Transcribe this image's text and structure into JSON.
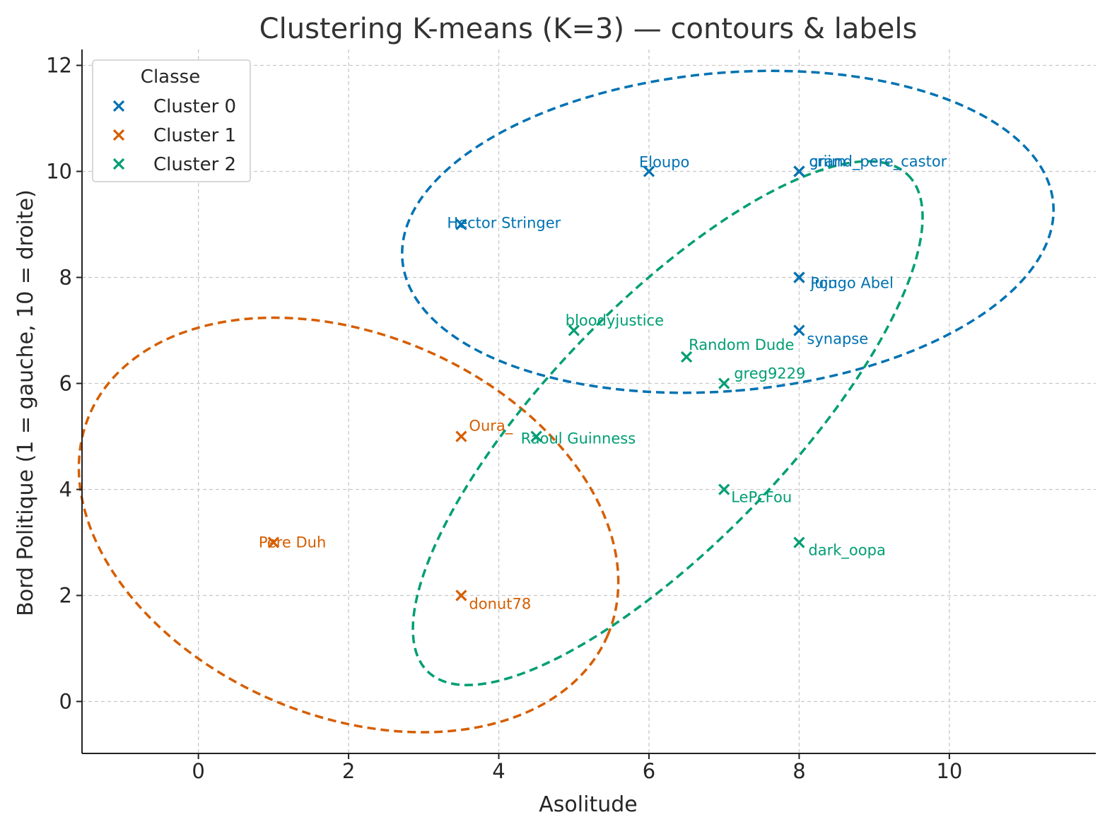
{
  "chart_data": {
    "type": "scatter",
    "title": "Clustering K-means (K=3) — contours & labels",
    "xlabel": "Asolitude",
    "ylabel": "Bord Politique (1 = gauche, 10 = droite)",
    "xlim": [
      -1.55,
      11.95
    ],
    "ylim": [
      -0.98,
      12.3
    ],
    "xticks": [
      0,
      2,
      4,
      6,
      8,
      10
    ],
    "yticks": [
      0,
      2,
      4,
      6,
      8,
      10,
      12
    ],
    "grid": true,
    "legend": {
      "title": "Classe",
      "placement": "top-left",
      "entries": [
        "Cluster 0",
        "Cluster 1",
        "Cluster 2"
      ]
    },
    "series": [
      {
        "name": "Cluster 0",
        "color": "#0072b2",
        "points": [
          {
            "x": 6,
            "y": 10,
            "label": "Eloupo"
          },
          {
            "x": 8,
            "y": 10,
            "label": "grand_pere_castor"
          },
          {
            "x": 8,
            "y": 10,
            "label": "criim"
          },
          {
            "x": 3.5,
            "y": 9,
            "label": "Hector Stringer"
          },
          {
            "x": 8,
            "y": 8,
            "label": "Pongo Abel"
          },
          {
            "x": 8,
            "y": 8,
            "label": "juju"
          },
          {
            "x": 8,
            "y": 7,
            "label": "synapse"
          }
        ],
        "contour": {
          "cx": 7.05,
          "cy": 8.86,
          "rx": 4.35,
          "ry": 3.0,
          "angle_deg": -5
        }
      },
      {
        "name": "Cluster 1",
        "color": "#d55e00",
        "points": [
          {
            "x": 3.5,
            "y": 5,
            "label": "Oura_"
          },
          {
            "x": 1,
            "y": 3,
            "label": "Pere Duh"
          },
          {
            "x": 3.5,
            "y": 2,
            "label": "donut78"
          }
        ],
        "contour": {
          "cx": 2.0,
          "cy": 3.33,
          "rx": 3.75,
          "ry": 3.6,
          "angle_deg": 23
        }
      },
      {
        "name": "Cluster 2",
        "color": "#009e73",
        "points": [
          {
            "x": 5,
            "y": 7,
            "label": "bloodyjustice"
          },
          {
            "x": 6.5,
            "y": 6.5,
            "label": "Random Dude"
          },
          {
            "x": 7,
            "y": 6,
            "label": "greg9229"
          },
          {
            "x": 4.5,
            "y": 5,
            "label": "Raoul Guinness"
          },
          {
            "x": 7,
            "y": 4,
            "label": "LePcFou"
          },
          {
            "x": 8,
            "y": 3,
            "label": "dark_oopa"
          }
        ],
        "contour": {
          "cx": 6.25,
          "cy": 5.25,
          "rx": 4.6,
          "ry": 2.25,
          "angle_deg": -46
        }
      }
    ]
  }
}
